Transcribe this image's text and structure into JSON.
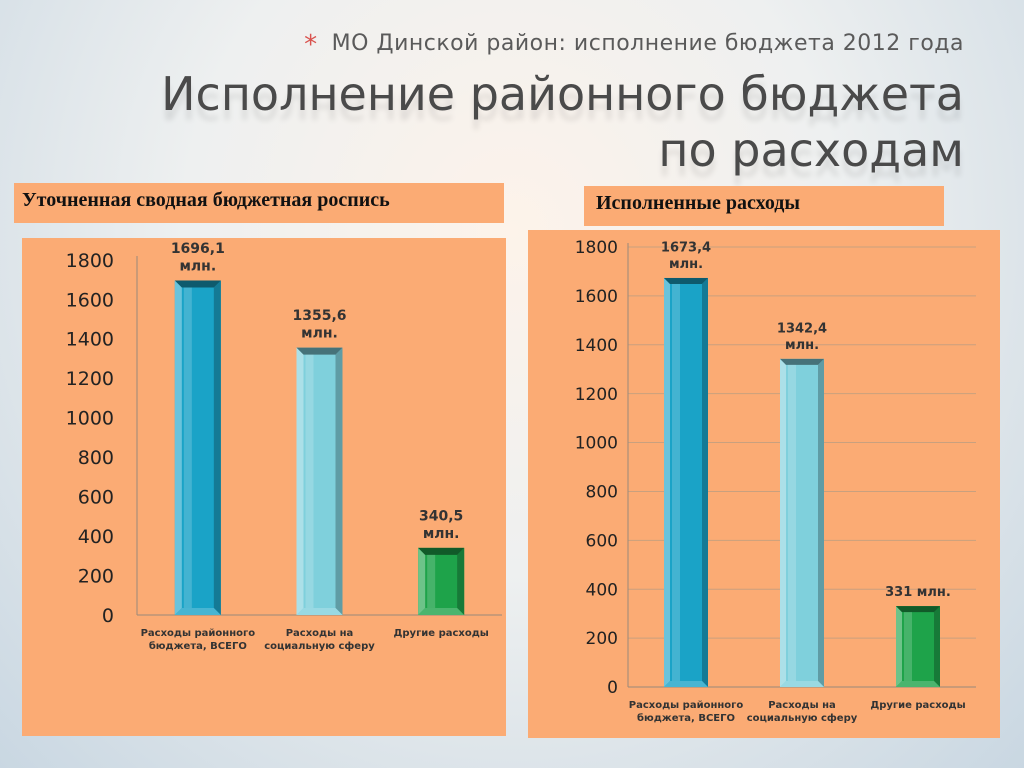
{
  "slide": {
    "subtitle_star": "*",
    "subtitle": "МО Динской район: исполнение бюджета 2012 года",
    "title_line1": "Исполнение районного бюджета",
    "title_line2": "по расходам"
  },
  "colors": {
    "panel": "#fbab74",
    "bar_total": "#1aa3c7",
    "bar_social": "#7fd0dc",
    "bar_other": "#1ea34a"
  },
  "chart_data": [
    {
      "type": "bar",
      "title": "Уточненная сводная бюджетная роспись",
      "categories": [
        [
          "Расходы районного",
          "бюджета, ВСЕГО"
        ],
        [
          "Расходы на",
          "социальную сферу"
        ],
        [
          "Другие расходы"
        ]
      ],
      "values": [
        1696.1,
        1355.6,
        340.5
      ],
      "data_labels": [
        [
          "1696,1",
          "млн."
        ],
        [
          "1355,6",
          "млн."
        ],
        [
          "340,5",
          "млн."
        ]
      ],
      "ylim": [
        0,
        1800
      ],
      "yticks": [
        0,
        200,
        400,
        600,
        800,
        1000,
        1200,
        1400,
        1600,
        1800
      ],
      "grid": false
    },
    {
      "type": "bar",
      "title": "Исполненные расходы",
      "categories": [
        [
          "Расходы районного",
          "бюджета, ВСЕГО"
        ],
        [
          "Расходы на",
          "социальную сферу"
        ],
        [
          "Другие расходы"
        ]
      ],
      "values": [
        1673.4,
        1342.4,
        331
      ],
      "data_labels": [
        [
          "1673,4",
          "млн."
        ],
        [
          "1342,4",
          "млн."
        ],
        [
          "331 млн."
        ]
      ],
      "ylim": [
        0,
        1800
      ],
      "yticks": [
        0,
        200,
        400,
        600,
        800,
        1000,
        1200,
        1400,
        1600,
        1800
      ],
      "grid": true
    }
  ]
}
